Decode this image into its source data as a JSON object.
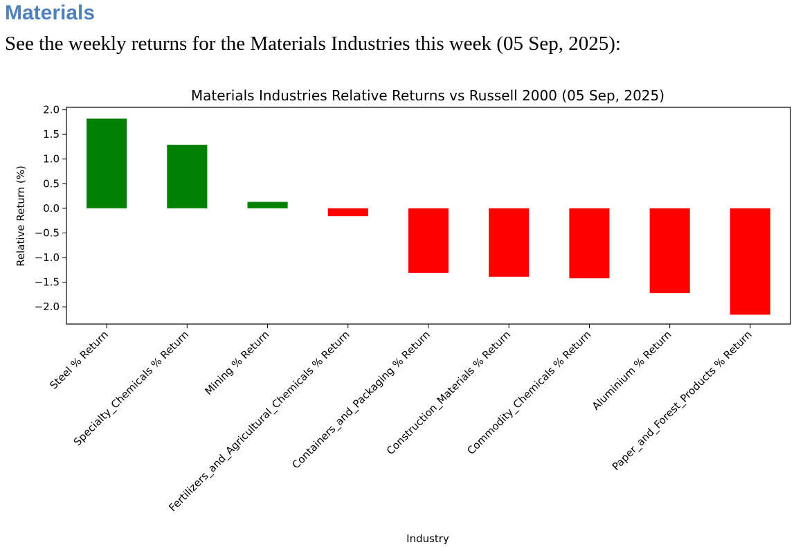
{
  "document": {
    "heading": "Materials",
    "intro": "See the weekly returns for the Materials Industries this week (05 Sep, 2025):"
  },
  "chart_data": {
    "type": "bar",
    "title": "Materials Industries Relative Returns vs Russell 2000 (05 Sep, 2025)",
    "xlabel": "Industry",
    "ylabel": "Relative Return (%)",
    "ylim": [
      -2.35,
      2.05
    ],
    "yticks": [
      2.0,
      1.5,
      1.0,
      0.5,
      0.0,
      -0.5,
      -1.0,
      -1.5,
      -2.0
    ],
    "ytick_labels": [
      "2.0",
      "1.5",
      "1.0",
      "0.5",
      "0.0",
      "−0.5",
      "−1.0",
      "−1.5",
      "−2.0"
    ],
    "categories": [
      "Steel % Return",
      "Specialty_Chemicals % Return",
      "Mining % Return",
      "Fertilizers_and_Agricultural_Chemicals % Return",
      "Containers_and_Packaging % Return",
      "Construction_Materials % Return",
      "Commodity_Chemicals % Return",
      "Aluminium % Return",
      "Paper_and_Forest_Products % Return"
    ],
    "values": [
      1.82,
      1.29,
      0.13,
      -0.16,
      -1.31,
      -1.39,
      -1.42,
      -1.72,
      -2.16
    ],
    "positive_color": "#008000",
    "negative_color": "#ff0000",
    "grid": false,
    "legend": "none"
  }
}
